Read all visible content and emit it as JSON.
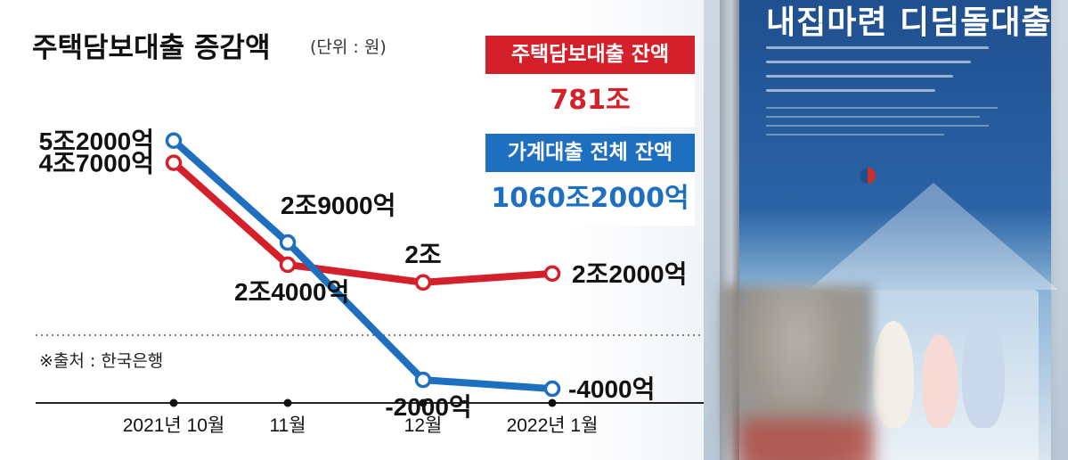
{
  "header": {
    "title": "주택담보대출 증감액",
    "unit": "(단위 : 원)"
  },
  "info_boxes": [
    {
      "label": "주택담보대출 잔액",
      "value": "781조",
      "label_bg": "#d4202a",
      "value_color": "#d4202a"
    },
    {
      "label": "가계대출 전체 잔액",
      "value": "1060조2000억",
      "label_bg": "#1f6fc0",
      "value_color": "#1f6fc0"
    }
  ],
  "source": "※출처 : 한국은행",
  "chart_data": {
    "type": "line",
    "categories": [
      "2021년 10월",
      "11월",
      "12월",
      "2022년 1월"
    ],
    "ylim": [
      -6000,
      60000
    ],
    "series": [
      {
        "color": "#1f6fc0",
        "values": [
          52000,
          29000,
          -2000,
          -4000
        ],
        "labels": [
          "5조2000억",
          "2조9000억",
          "-2000억",
          "-4000억"
        ]
      },
      {
        "color": "#d4202a",
        "values": [
          47000,
          24000,
          20000,
          22000
        ],
        "labels": [
          "4조7000억",
          "2조4000억",
          "2조",
          "2조2000억"
        ]
      }
    ]
  },
  "photo": {
    "banner_title": "내집마련 디딤돌대출"
  }
}
